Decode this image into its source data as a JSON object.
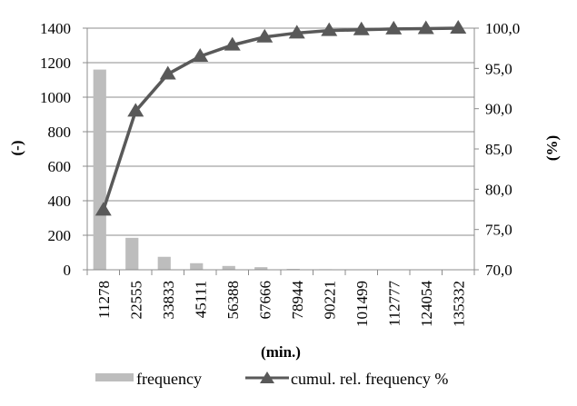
{
  "chart_data": {
    "type": "bar+line",
    "categories": [
      "11278",
      "22555",
      "33833",
      "45111",
      "56388",
      "67666",
      "78944",
      "90221",
      "101499",
      "112777",
      "124054",
      "135332"
    ],
    "series": [
      {
        "name": "frequency",
        "type": "bar",
        "axis": "left",
        "values": [
          1160,
          185,
          75,
          38,
          22,
          15,
          5,
          3,
          2,
          1,
          1,
          1
        ]
      },
      {
        "name": "cumul. rel. frequency %",
        "type": "line",
        "axis": "right",
        "marker": "triangle",
        "values": [
          77.4,
          89.7,
          94.3,
          96.5,
          97.9,
          98.9,
          99.4,
          99.7,
          99.8,
          99.9,
          99.95,
          100.0
        ]
      }
    ],
    "xlabel": "(min.)",
    "ylabel_left": "(-)",
    "ylabel_right": "(%)",
    "ylim_left": [
      0,
      1400
    ],
    "ylim_right": [
      70,
      100
    ],
    "yticks_left": [
      "0",
      "200",
      "400",
      "600",
      "800",
      "1000",
      "1200",
      "1400"
    ],
    "yticks_right": [
      "70,0",
      "75,0",
      "80,0",
      "85,0",
      "90,0",
      "95,0",
      "100,0"
    ],
    "grid": true,
    "legend_position": "bottom",
    "colors": {
      "bar": "#bdbdbd",
      "line": "#595959",
      "marker": "#595959",
      "grid": "#8c8c8c",
      "axis": "#8c8c8c"
    }
  }
}
